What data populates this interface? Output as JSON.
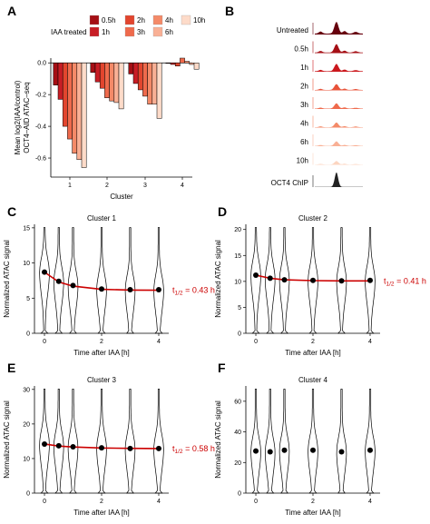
{
  "figure": {
    "panel_letters": [
      "A",
      "B",
      "C",
      "D",
      "E",
      "F"
    ]
  },
  "chart_data": [
    {
      "type": "bar",
      "panel": "A",
      "legend_title": "IAA treated",
      "xlabel": "Cluster",
      "ylabel": "Mean log2(IAA/control)\nOCT4–AID ATAC–seq",
      "categories": [
        "1",
        "2",
        "3",
        "4"
      ],
      "ylim": [
        -0.72,
        0.03
      ],
      "yticks": [
        "0.0",
        "-0.2",
        "-0.4",
        "-0.6"
      ],
      "ytick_values": [
        0,
        -0.2,
        -0.4,
        -0.6
      ],
      "series": [
        {
          "name": "0.5h",
          "color": "#a50f15",
          "values": [
            -0.14,
            -0.06,
            -0.07,
            0.0
          ]
        },
        {
          "name": "1h",
          "color": "#c81d25",
          "values": [
            -0.23,
            -0.12,
            -0.13,
            -0.01
          ]
        },
        {
          "name": "2h",
          "color": "#e2452e",
          "values": [
            -0.4,
            -0.16,
            -0.17,
            -0.02
          ]
        },
        {
          "name": "3h",
          "color": "#ef6a4c",
          "values": [
            -0.48,
            -0.22,
            -0.21,
            0.03
          ]
        },
        {
          "name": "4h",
          "color": "#f48a68",
          "values": [
            -0.57,
            -0.24,
            -0.26,
            0.01
          ]
        },
        {
          "name": "6h",
          "color": "#f9b095",
          "values": [
            -0.61,
            -0.25,
            -0.26,
            -0.01
          ]
        },
        {
          "name": "10h",
          "color": "#fddbc9",
          "values": [
            -0.66,
            -0.29,
            -0.35,
            -0.04
          ]
        }
      ]
    },
    {
      "type": "area",
      "panel": "B",
      "tracks": [
        {
          "label": "Untreated",
          "scale": "0-40",
          "color": "#67000d",
          "height": 1.0
        },
        {
          "label": "0.5h",
          "scale": "0-40",
          "color": "#a50f15",
          "height": 0.72
        },
        {
          "label": "1h",
          "scale": "0-40",
          "color": "#cb181d",
          "height": 0.62
        },
        {
          "label": "2h",
          "scale": "0-40",
          "color": "#e8533a",
          "height": 0.5
        },
        {
          "label": "3h",
          "scale": "0-40",
          "color": "#ef6a4c",
          "height": 0.45
        },
        {
          "label": "4h",
          "scale": "0-40",
          "color": "#f48a68",
          "height": 0.4
        },
        {
          "label": "6h",
          "scale": "0-40",
          "color": "#f9b095",
          "height": 0.38
        },
        {
          "label": "10h",
          "scale": "0-40",
          "color": "#fcd5c0",
          "height": 0.3
        },
        {
          "label": "OCT4 ChIP",
          "scale": "0-40",
          "color": "#222222",
          "height": 1.0
        }
      ]
    },
    {
      "type": "violin",
      "panel": "C",
      "title": "Cluster 1",
      "xlabel": "Time after IAA [h]",
      "ylabel": "Normalized ATAC signal",
      "x": [
        0,
        0.5,
        1,
        2,
        3,
        4
      ],
      "medians": [
        8.7,
        7.4,
        6.8,
        6.3,
        6.2,
        6.2
      ],
      "fit": [
        8.7,
        7.3,
        6.7,
        6.25,
        6.15,
        6.12
      ],
      "ylim": [
        0,
        15.5
      ],
      "yticks": [
        0,
        5,
        10,
        15
      ],
      "xticks": [
        0,
        2,
        4
      ],
      "halflife_label": "t",
      "halflife_sub": "1/2",
      "halflife_value": " = 0.43 h",
      "fit_color": "#cc0000"
    },
    {
      "type": "violin",
      "panel": "D",
      "title": "Cluster 2",
      "xlabel": "Time after IAA [h]",
      "ylabel": "Normalized ATAC signal",
      "x": [
        0,
        0.5,
        1,
        2,
        3,
        4
      ],
      "medians": [
        11.2,
        10.6,
        10.3,
        10.2,
        10.1,
        10.2
      ],
      "fit": [
        11.2,
        10.6,
        10.3,
        10.15,
        10.1,
        10.1
      ],
      "ylim": [
        0,
        21
      ],
      "yticks": [
        0,
        5,
        10,
        15,
        20
      ],
      "xticks": [
        0,
        2,
        4
      ],
      "halflife_label": "t",
      "halflife_sub": "1/2",
      "halflife_value": " = 0.41 h",
      "fit_color": "#cc0000"
    },
    {
      "type": "violin",
      "panel": "E",
      "title": "Cluster 3",
      "xlabel": "Time after IAA [h]",
      "ylabel": "Normalized ATAC signal",
      "x": [
        0,
        0.5,
        1,
        2,
        3,
        4
      ],
      "medians": [
        14.2,
        13.7,
        13.4,
        13.1,
        12.9,
        12.9
      ],
      "fit": [
        14.2,
        13.6,
        13.35,
        13.05,
        12.95,
        12.9
      ],
      "ylim": [
        0,
        31
      ],
      "yticks": [
        0,
        10,
        20,
        30
      ],
      "xticks": [
        0,
        2,
        4
      ],
      "halflife_label": "t",
      "halflife_sub": "1/2",
      "halflife_value": " = 0.58 h",
      "fit_color": "#cc0000"
    },
    {
      "type": "violin",
      "panel": "F",
      "title": "Cluster 4",
      "xlabel": "Time after IAA [h]",
      "ylabel": "Normalized ATAC signal",
      "x": [
        0,
        0.5,
        1,
        2,
        3,
        4
      ],
      "medians": [
        27.5,
        27.0,
        28.0,
        28.0,
        27.0,
        28.0
      ],
      "fit": null,
      "ylim": [
        0,
        70
      ],
      "yticks": [
        0,
        20,
        40,
        60
      ],
      "xticks": [
        0,
        2,
        4
      ],
      "fit_color": "#cc0000"
    }
  ]
}
